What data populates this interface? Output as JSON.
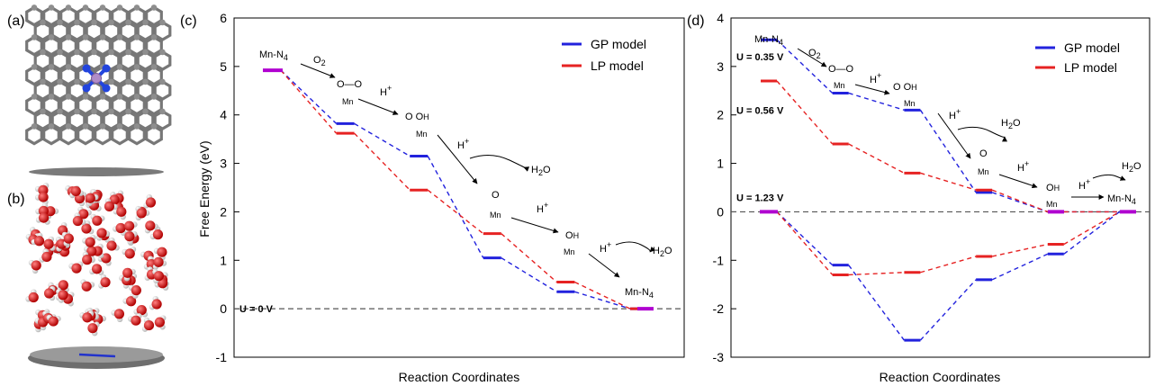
{
  "panel_labels": [
    "(a)",
    "(b)",
    "(c)",
    "(d)"
  ],
  "colors": {
    "gp": "#2222dd",
    "lp": "#e62222",
    "end": "#b000d0",
    "baseline": "#555555"
  },
  "chart_data": [
    {
      "type": "line",
      "panel": "(c)",
      "xlabel": "Reaction Coordinates",
      "ylabel": "Free Energy  (eV)",
      "ylim": [
        -1,
        6
      ],
      "yticks": [
        "-1",
        "0",
        "1",
        "2",
        "3",
        "4",
        "5",
        "6"
      ],
      "legend": {
        "position": "top-right",
        "entries": [
          "GP model",
          "LP model"
        ]
      },
      "steps": 7,
      "series": [
        {
          "name": "GP model",
          "values": [
            4.92,
            3.82,
            3.15,
            1.05,
            0.35,
            0.0
          ]
        },
        {
          "name": "LP model",
          "values": [
            4.92,
            3.62,
            2.45,
            1.55,
            0.55,
            0.0
          ]
        }
      ],
      "levels": [
        {
          "series": 0,
          "step": 0,
          "value": 4.92
        },
        {
          "series": 0,
          "step": 1,
          "value": 3.82
        },
        {
          "series": 0,
          "step": 2,
          "value": 3.15
        },
        {
          "series": 0,
          "step": 3,
          "value": 1.05
        },
        {
          "series": 0,
          "step": 4,
          "value": 0.35
        },
        {
          "series": 0,
          "step": 5,
          "value": 0.0
        },
        {
          "series": 1,
          "step": 0,
          "value": 4.92
        },
        {
          "series": 1,
          "step": 1,
          "value": 3.62
        },
        {
          "series": 1,
          "step": 2,
          "value": 2.45
        },
        {
          "series": 1,
          "step": 3,
          "value": 1.55
        },
        {
          "series": 1,
          "step": 4,
          "value": 0.55
        },
        {
          "series": 1,
          "step": 5,
          "value": 0.0
        }
      ],
      "potential_labels": [
        {
          "text": "U = 0 V",
          "value": 0.0
        }
      ],
      "annotations": [
        "Mn-N4",
        "O2",
        "H+",
        "H+",
        "H2O",
        "H+",
        "H+",
        "H2O",
        "Mn-N4",
        "Mn",
        "Mn",
        "Mn",
        "Mn"
      ]
    },
    {
      "type": "line",
      "panel": "(d)",
      "xlabel": "Reaction Coordinates",
      "ylabel": "",
      "ylim": [
        -3,
        4
      ],
      "yticks": [
        "-3",
        "-2",
        "-1",
        "0",
        "1",
        "2",
        "3",
        "4"
      ],
      "legend": {
        "position": "top-right",
        "entries": [
          "GP model",
          "LP model"
        ]
      },
      "steps": 7,
      "series": [
        {
          "name": "GP model",
          "potential": "U = 0.35 V",
          "values": [
            3.55,
            2.45,
            2.1,
            0.4,
            0.0,
            0.0
          ]
        },
        {
          "name": "LP model",
          "potential": "U = 0.56 V",
          "values": [
            2.7,
            1.4,
            0.8,
            0.45,
            0.0,
            0.0
          ]
        },
        {
          "name": "GP model",
          "potential": "U = 1.23 V",
          "values": [
            0.0,
            -1.1,
            -2.65,
            -1.4,
            -0.87,
            0.0
          ]
        },
        {
          "name": "LP model",
          "potential": "U = 1.23 V",
          "values": [
            0.0,
            -1.3,
            -1.25,
            -0.92,
            -0.67,
            0.0
          ]
        }
      ],
      "levels": [
        {
          "series": 0,
          "step": 0,
          "value": 3.55
        },
        {
          "series": 0,
          "step": 1,
          "value": 2.45
        },
        {
          "series": 0,
          "step": 2,
          "value": 2.1
        },
        {
          "series": 0,
          "step": 3,
          "value": 0.4
        },
        {
          "series": 0,
          "step": 4,
          "value": 0.0
        },
        {
          "series": 1,
          "step": 0,
          "value": 2.7
        },
        {
          "series": 1,
          "step": 1,
          "value": 1.4
        },
        {
          "series": 1,
          "step": 2,
          "value": 0.8
        },
        {
          "series": 1,
          "step": 3,
          "value": 0.45
        },
        {
          "series": 1,
          "step": 4,
          "value": 0.0
        },
        {
          "series": 2,
          "step": 0,
          "value": 0.0
        },
        {
          "series": 2,
          "step": 1,
          "value": -1.1
        },
        {
          "series": 2,
          "step": 2,
          "value": -2.65
        },
        {
          "series": 2,
          "step": 3,
          "value": -1.4
        },
        {
          "series": 2,
          "step": 4,
          "value": -0.87
        },
        {
          "series": 2,
          "step": 5,
          "value": 0.0
        },
        {
          "series": 3,
          "step": 1,
          "value": -1.3
        },
        {
          "series": 3,
          "step": 2,
          "value": -1.25
        },
        {
          "series": 3,
          "step": 3,
          "value": -0.92
        },
        {
          "series": 3,
          "step": 4,
          "value": -0.67
        }
      ],
      "potential_labels": [
        {
          "text": "U = 0.35 V",
          "value": 3.2
        },
        {
          "text": "U = 0.56 V",
          "value": 2.1
        },
        {
          "text": "U = 1.23 V",
          "value": 0.3
        }
      ],
      "annotations": [
        "Mn-N4",
        "O2",
        "H+",
        "H+",
        "H2O",
        "H+",
        "H+",
        "H2O",
        "Mn-N4",
        "Mn",
        "Mn",
        "Mn",
        "Mn"
      ]
    }
  ]
}
